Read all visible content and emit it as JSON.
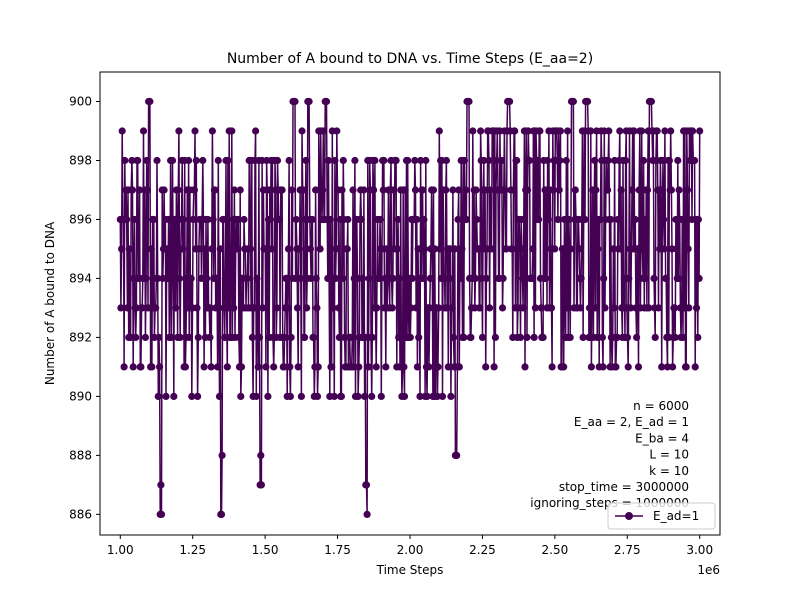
{
  "chart_data": {
    "type": "line",
    "title": "Number of A bound to DNA vs. Time Steps (E_aa=2)",
    "xlabel": "Time Steps",
    "ylabel": "Number of A bound to DNA",
    "x_offset_label": "1e6",
    "xlim": [
      0.93,
      3.07
    ],
    "ylim": [
      885.3,
      901.0
    ],
    "x_scale_factor": 1000000,
    "xticks": [
      1.0,
      1.25,
      1.5,
      1.75,
      2.0,
      2.25,
      2.5,
      2.75,
      3.0
    ],
    "xtick_labels": [
      "1.00",
      "1.25",
      "1.50",
      "1.75",
      "2.00",
      "2.25",
      "2.50",
      "2.75",
      "3.00"
    ],
    "yticks": [
      886,
      888,
      890,
      892,
      894,
      896,
      898,
      900
    ],
    "ytick_labels": [
      "886",
      "888",
      "890",
      "892",
      "894",
      "896",
      "898",
      "900"
    ],
    "grid": false,
    "legend_position": "lower right",
    "series": [
      {
        "name": "E_ad=1",
        "color": "#440154",
        "marker": "circle",
        "x_start": 1000000,
        "x_end": 3000000,
        "y_min": 886,
        "y_max": 900,
        "y_typical_range": [
          890,
          899
        ],
        "dips_to_min_at": [
          1140000,
          1350000,
          1485000,
          1850000,
          2160000
        ],
        "peaks_at_max_at": [
          1100000,
          1600000,
          1650000,
          1710000,
          2200000,
          2340000,
          2560000,
          2610000,
          2830000
        ]
      }
    ],
    "annotation_lines": [
      "n = 6000",
      "E_aa = 2, E_ad = 1",
      "E_ba = 4",
      "L = 10",
      "k = 10",
      "stop_time = 3000000",
      "ignoring_steps = 1000000"
    ]
  }
}
